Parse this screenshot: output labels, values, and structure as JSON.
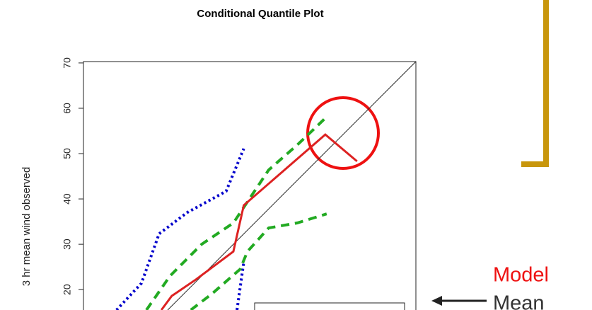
{
  "chart_data": {
    "type": "line",
    "title": "Conditional Quantile Plot",
    "y_label": "3 hr mean wind observed",
    "xlim": [
      -3.1,
      70.3
    ],
    "ylim": [
      15.5,
      70.3
    ],
    "yticks": [
      20,
      30,
      40,
      50,
      60,
      70
    ],
    "series": [
      {
        "color": "#0000cc",
        "style": "dotted",
        "x": [
          4.2,
          9.7,
          13.6,
          19.8,
          28.4,
          32.3
        ],
        "values": [
          15.5,
          21.4,
          32.3,
          37.0,
          41.7,
          51.1
        ]
      },
      {
        "color": "#0000cc",
        "style": "dotted",
        "x": [
          30.8,
          32.3
        ],
        "values": [
          15.5,
          26.1
        ]
      },
      {
        "color": "#22aa22",
        "style": "dashed",
        "x": [
          10.8,
          16.0,
          23.0,
          30.0,
          37.8,
          44.1,
          50.6
        ],
        "values": [
          15.5,
          23.0,
          30.0,
          34.7,
          46.4,
          51.9,
          58.1
        ]
      },
      {
        "color": "#22aa22",
        "style": "dashed",
        "x": [
          20.6,
          25.3,
          31.5,
          33.1,
          37.8,
          44.1,
          50.6
        ],
        "values": [
          15.5,
          19.1,
          24.5,
          28.4,
          33.6,
          34.7,
          36.7
        ]
      },
      {
        "color": "#dd2222",
        "style": "solid",
        "x": [
          14.1,
          16.4,
          21.7,
          30.0,
          32.3,
          50.3,
          57.3
        ],
        "values": [
          15.5,
          18.6,
          22.2,
          28.4,
          38.6,
          54.2,
          48.3
        ]
      }
    ],
    "annotations": [
      "Model",
      "Mean"
    ]
  }
}
